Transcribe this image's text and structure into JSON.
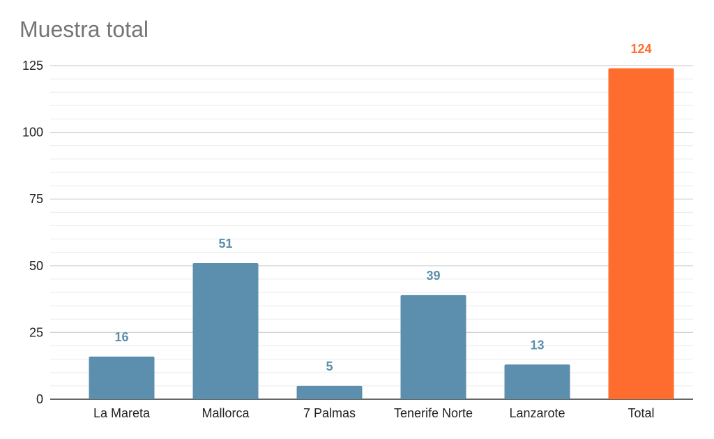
{
  "chart_data": {
    "type": "bar",
    "title": "Muestra total",
    "xlabel": "",
    "ylabel": "",
    "categories": [
      "La Mareta",
      "Mallorca",
      "7 Palmas",
      "Tenerife Norte",
      "Lanzarote",
      "Total"
    ],
    "values": [
      16,
      51,
      5,
      39,
      13,
      124
    ],
    "ylim": [
      0,
      125
    ],
    "yticks": [
      0,
      25,
      50,
      75,
      100,
      125
    ],
    "grid": true,
    "legend": "none",
    "colors": {
      "bar": "#5b8fad",
      "highlight": "#ff6d2e",
      "label": "#5b8fad",
      "highlight_label": "#ff6d2e",
      "grid_major": "#d0d0d0",
      "grid_minor": "#ebebeb",
      "axis": "#333333"
    }
  }
}
